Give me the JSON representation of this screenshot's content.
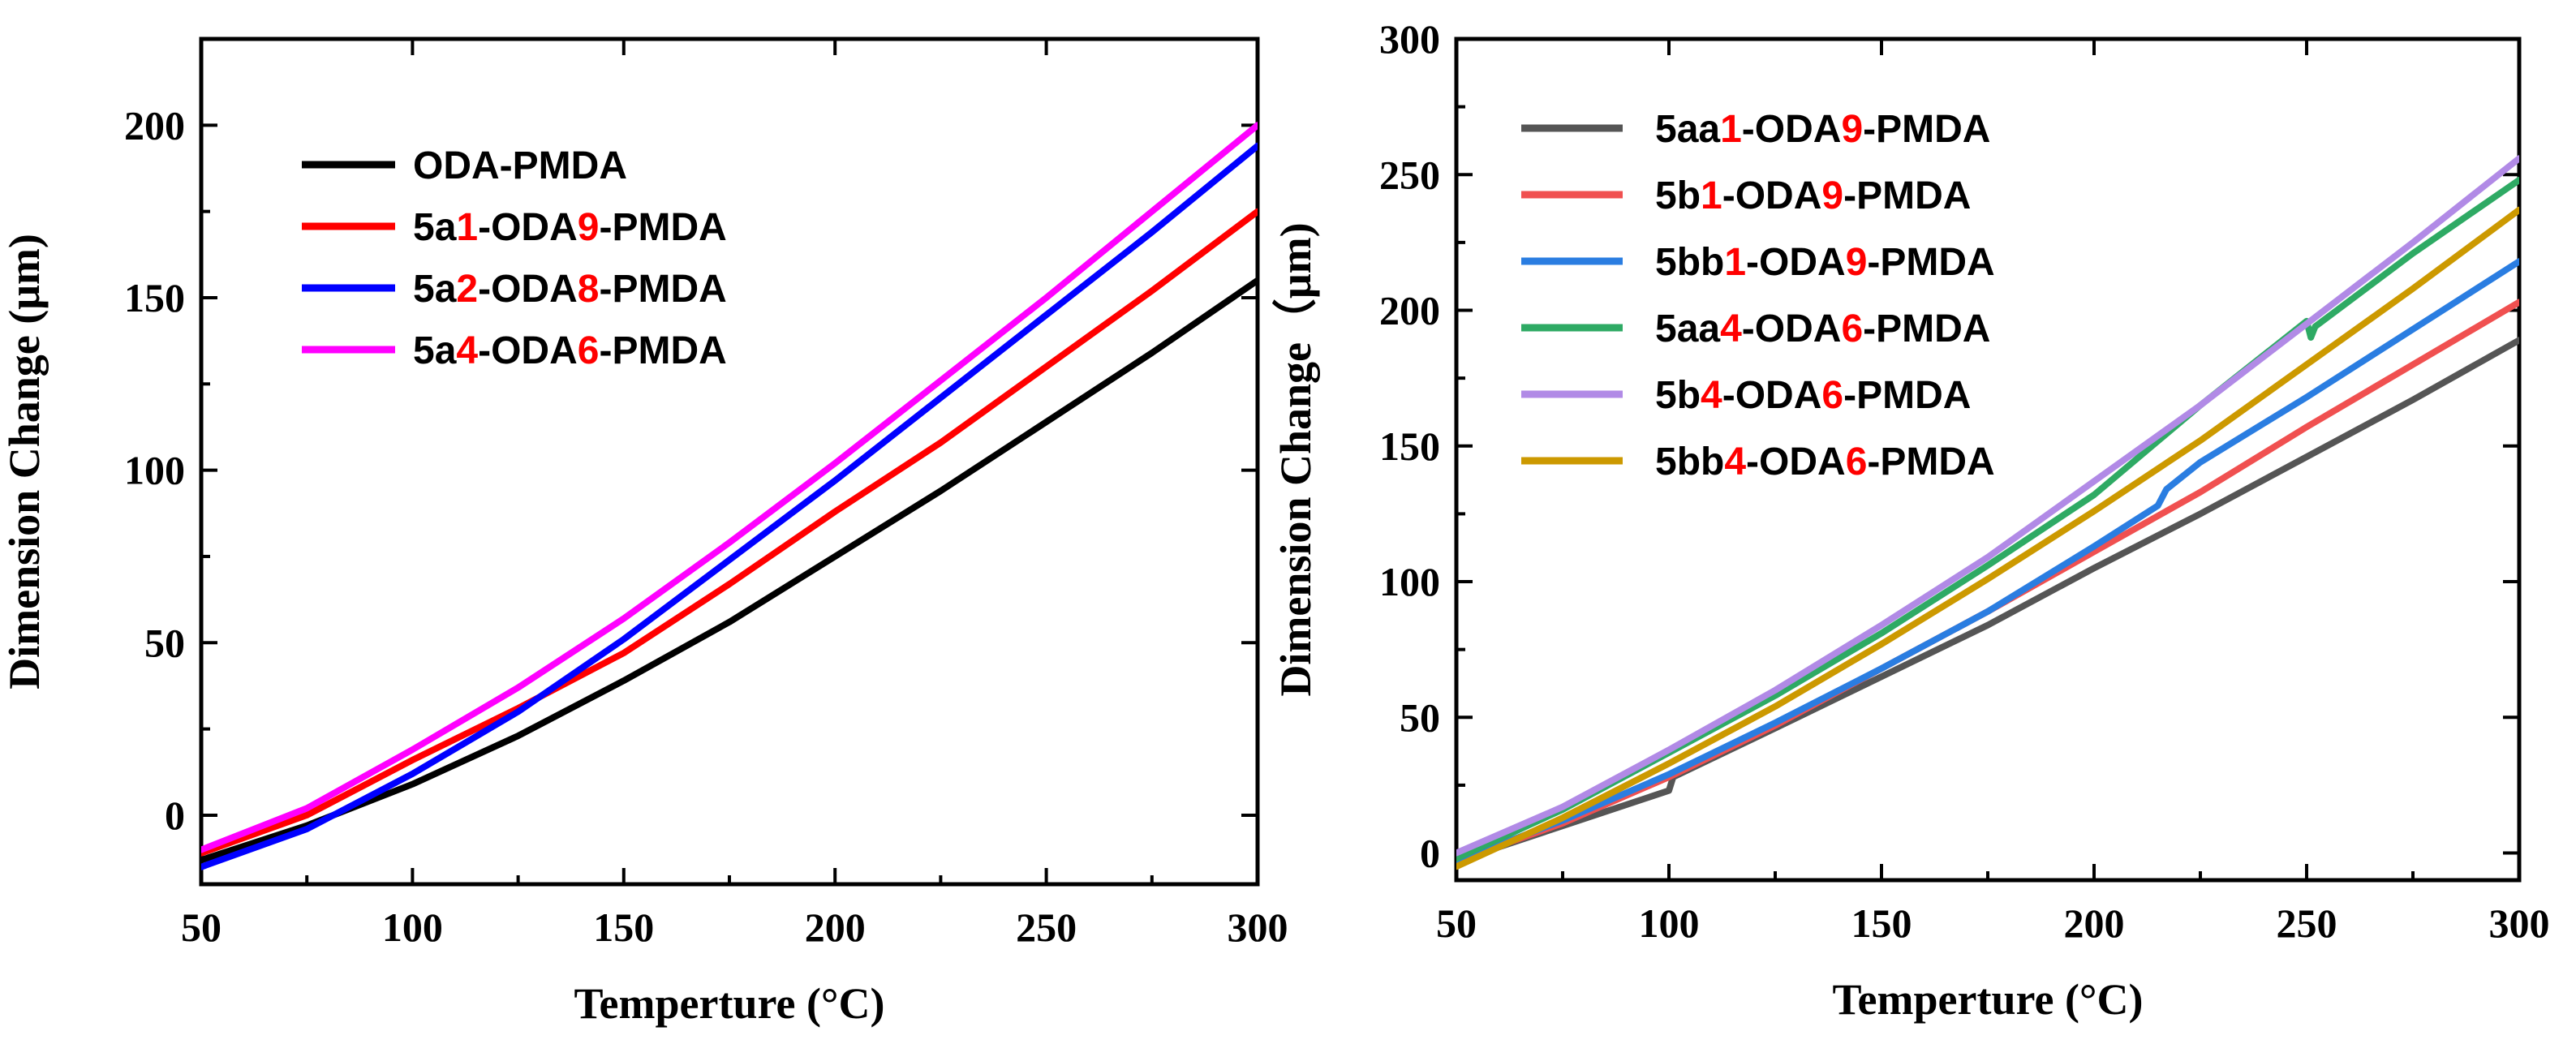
{
  "chart_data": [
    {
      "type": "line",
      "id": "left",
      "xlabel": "Temperture (°C)",
      "ylabel": "Dimension Change (μm)",
      "xlim": [
        50,
        300
      ],
      "ylim": [
        -20,
        225
      ],
      "xticks": [
        50,
        100,
        150,
        200,
        250,
        300
      ],
      "yticks": [
        0,
        50,
        100,
        150,
        200
      ],
      "legend_position": "top-left",
      "series": [
        {
          "name": "ODA-PMDA",
          "label_parts": [
            "ODA-PMDA"
          ],
          "color": "#000000",
          "x": [
            50,
            75,
            100,
            125,
            150,
            175,
            200,
            225,
            250,
            275,
            300
          ],
          "y": [
            -13,
            -3,
            9,
            23,
            39,
            56,
            75,
            94,
            114,
            134,
            155
          ]
        },
        {
          "name": "5a1-ODA9-PMDA",
          "label_parts": [
            "5a",
            "1",
            "-ODA",
            "9",
            "-PMDA"
          ],
          "color": "#ff0000",
          "x": [
            50,
            75,
            100,
            125,
            150,
            175,
            200,
            225,
            250,
            275,
            300
          ],
          "y": [
            -11,
            0,
            16,
            31,
            47,
            67,
            88,
            108,
            130,
            152,
            175
          ]
        },
        {
          "name": "5a2-ODA8-PMDA",
          "label_parts": [
            "5a",
            "2",
            "-ODA",
            "8",
            "-PMDA"
          ],
          "color": "#0000ff",
          "x": [
            50,
            75,
            100,
            125,
            150,
            175,
            200,
            225,
            250,
            275,
            300
          ],
          "y": [
            -15,
            -4,
            12,
            30,
            51,
            74,
            97,
            121,
            145,
            169,
            194
          ]
        },
        {
          "name": "5a4-ODA6-PMDA",
          "label_parts": [
            "5a",
            "4",
            "-ODA",
            "6",
            "-PMDA"
          ],
          "color": "#ff00ff",
          "x": [
            50,
            75,
            100,
            125,
            150,
            175,
            200,
            225,
            250,
            275,
            300
          ],
          "y": [
            -10,
            2,
            19,
            37,
            57,
            79,
            102,
            126,
            150,
            175,
            200
          ]
        }
      ]
    },
    {
      "type": "line",
      "id": "right",
      "xlabel": "Temperture (°C)",
      "ylabel": "Dimension Change（μm)",
      "xlim": [
        50,
        300
      ],
      "ylim": [
        -10,
        300
      ],
      "xticks": [
        50,
        100,
        150,
        200,
        250,
        300
      ],
      "yticks": [
        0,
        50,
        100,
        150,
        200,
        250,
        300
      ],
      "legend_position": "top-left",
      "series": [
        {
          "name": "5aa1-ODA9-PMDA",
          "label_parts": [
            "5aa",
            "1",
            "-ODA",
            "9",
            "-PMDA"
          ],
          "color": "#555555",
          "x": [
            50,
            75,
            100,
            101,
            125,
            150,
            175,
            200,
            225,
            250,
            275,
            300
          ],
          "y": [
            -3,
            10,
            23,
            28,
            46,
            65,
            84,
            105,
            125,
            146,
            167,
            189
          ]
        },
        {
          "name": "5b1-ODA9-PMDA",
          "label_parts": [
            "5b",
            "1",
            "-ODA",
            "9",
            "-PMDA"
          ],
          "color": "#f05050",
          "x": [
            50,
            75,
            100,
            125,
            150,
            175,
            200,
            225,
            250,
            275,
            300
          ],
          "y": [
            -3,
            11,
            28,
            47,
            68,
            89,
            111,
            133,
            157,
            180,
            203
          ]
        },
        {
          "name": "5bb1-ODA9-PMDA",
          "label_parts": [
            "5bb",
            "1",
            "-ODA",
            "9",
            "-PMDA"
          ],
          "color": "#2a7de1",
          "x": [
            50,
            75,
            100,
            125,
            150,
            175,
            200,
            215,
            217,
            225,
            250,
            275,
            300
          ],
          "y": [
            -3,
            12,
            29,
            48,
            68,
            89,
            113,
            128,
            134,
            144,
            168,
            193,
            218
          ]
        },
        {
          "name": "5aa4-ODA6-PMDA",
          "label_parts": [
            "5aa",
            "4",
            "-ODA",
            "6",
            "-PMDA"
          ],
          "color": "#2eaa64",
          "x": [
            50,
            75,
            100,
            125,
            150,
            175,
            200,
            225,
            250,
            251,
            252,
            275,
            300
          ],
          "y": [
            -2,
            16,
            37,
            58,
            81,
            106,
            132,
            165,
            196,
            190,
            194,
            221,
            248
          ]
        },
        {
          "name": "5b4-ODA6-PMDA",
          "label_parts": [
            "5b",
            "4",
            "-ODA",
            "6",
            "-PMDA"
          ],
          "color": "#b18ae6",
          "x": [
            50,
            75,
            100,
            125,
            150,
            175,
            200,
            225,
            250,
            275,
            300
          ],
          "y": [
            0,
            17,
            38,
            60,
            84,
            109,
            137,
            165,
            195,
            225,
            256
          ]
        },
        {
          "name": "5bb4-ODA6-PMDA",
          "label_parts": [
            "5bb",
            "4",
            "-ODA",
            "6",
            "-PMDA"
          ],
          "color": "#cc9900",
          "x": [
            50,
            75,
            100,
            125,
            150,
            175,
            200,
            225,
            250,
            275,
            300
          ],
          "y": [
            -5,
            13,
            33,
            54,
            77,
            101,
            126,
            152,
            180,
            208,
            237
          ]
        }
      ]
    }
  ]
}
